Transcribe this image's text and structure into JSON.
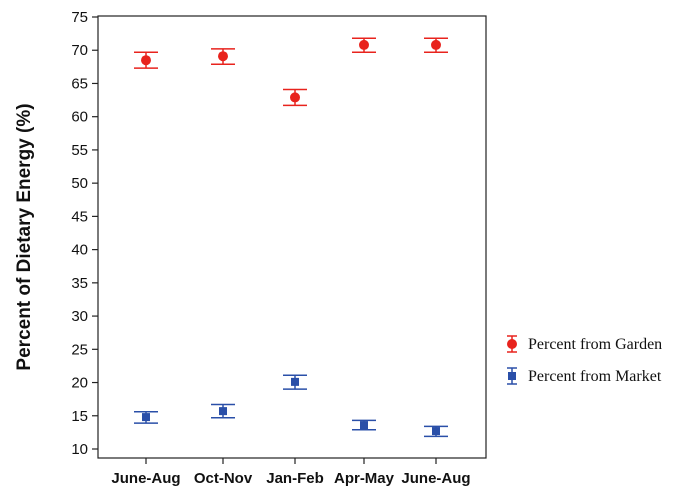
{
  "chart_data": {
    "type": "scatter",
    "title": "",
    "xlabel": "",
    "ylabel": "Percent of Dietary Energy (%)",
    "ylim": [
      10,
      75
    ],
    "y_ticks": [
      10,
      15,
      20,
      25,
      30,
      35,
      40,
      45,
      50,
      55,
      60,
      65,
      70,
      75
    ],
    "categories": [
      "June-Aug",
      "Oct-Nov",
      "Jan-Feb",
      "Apr-May",
      "June-Aug"
    ],
    "grid": false,
    "legend_position": "right",
    "series": [
      {
        "name": "Percent from Garden",
        "color": "#e8231d",
        "marker": "circle",
        "values": [
          68.5,
          69.1,
          62.9,
          70.8,
          70.8
        ],
        "error_low": [
          67.3,
          67.9,
          61.7,
          69.7,
          69.7
        ],
        "error_high": [
          69.7,
          70.2,
          64.1,
          71.8,
          71.8
        ]
      },
      {
        "name": "Percent from Market",
        "color": "#2a4fa8",
        "marker": "square",
        "values": [
          14.8,
          15.7,
          20.1,
          13.6,
          12.7
        ],
        "error_low": [
          13.9,
          14.7,
          19.0,
          12.9,
          11.9
        ],
        "error_high": [
          15.6,
          16.7,
          21.1,
          14.3,
          13.4
        ]
      }
    ]
  }
}
